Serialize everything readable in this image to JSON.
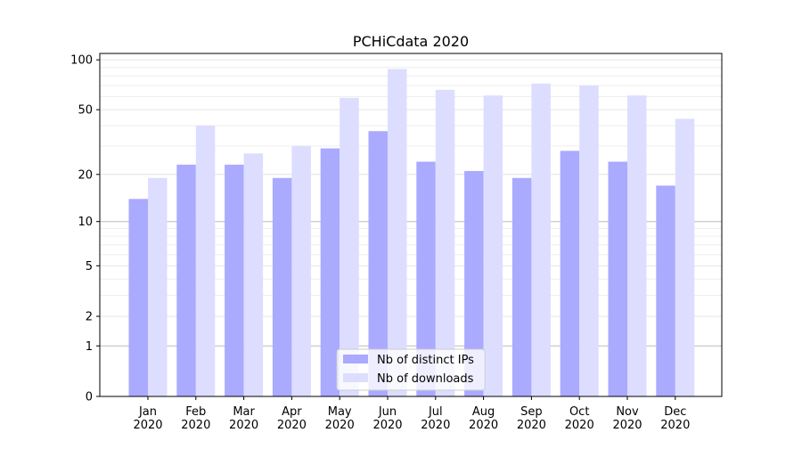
{
  "chart_data": {
    "type": "bar",
    "title": "PCHiCdata 2020",
    "xlabel": "",
    "ylabel": "",
    "yscale": "log(1+y)",
    "ylim": [
      0,
      110
    ],
    "yticks": [
      0,
      1,
      2,
      5,
      10,
      20,
      50,
      100
    ],
    "categories": [
      "Jan\n2020",
      "Feb\n2020",
      "Mar\n2020",
      "Apr\n2020",
      "May\n2020",
      "Jun\n2020",
      "Jul\n2020",
      "Aug\n2020",
      "Sep\n2020",
      "Oct\n2020",
      "Nov\n2020",
      "Dec\n2020"
    ],
    "series": [
      {
        "name": "Nb of distinct IPs",
        "color": "#aaaaff",
        "values": [
          14,
          23,
          23,
          19,
          29,
          37,
          24,
          21,
          19,
          28,
          24,
          17
        ]
      },
      {
        "name": "Nb of downloads",
        "color": "#ddddff",
        "values": [
          19,
          40,
          27,
          30,
          59,
          88,
          66,
          61,
          72,
          70,
          61,
          44
        ]
      }
    ],
    "legend_position": "lower-center",
    "grid": true
  }
}
